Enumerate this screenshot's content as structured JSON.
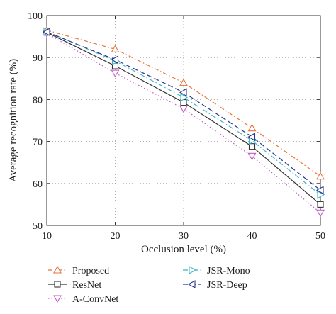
{
  "chart_data": {
    "type": "line",
    "xlabel": "Occlusion level (%)",
    "ylabel": "Average recognition rate (%)",
    "xlim": [
      10,
      50
    ],
    "ylim": [
      50,
      100
    ],
    "xticks": [
      10,
      20,
      30,
      40,
      50
    ],
    "yticks": [
      50,
      60,
      70,
      80,
      90,
      100
    ],
    "grid": true,
    "legend_position": "bottom",
    "x": [
      10,
      20,
      30,
      40,
      50
    ],
    "series": [
      {
        "name": "Proposed",
        "values": [
          96.5,
          92.0,
          84.0,
          73.2,
          61.7
        ],
        "color": "#e8743b",
        "marker": "triangle-up",
        "dash": "6,3,1.5,3"
      },
      {
        "name": "ResNet",
        "values": [
          96.0,
          88.0,
          79.3,
          68.8,
          55.0
        ],
        "color": "#333333",
        "marker": "square",
        "dash": ""
      },
      {
        "name": "A-ConvNet",
        "values": [
          95.8,
          86.3,
          77.8,
          66.5,
          53.0
        ],
        "color": "#c45ac4",
        "marker": "triangle-down",
        "dash": "1.5,3"
      },
      {
        "name": "JSR-Mono",
        "values": [
          96.2,
          89.2,
          80.5,
          70.2,
          57.3
        ],
        "color": "#3fb5c5",
        "marker": "triangle-right",
        "dash": "7,3,1.5,3"
      },
      {
        "name": "JSR-Deep",
        "values": [
          96.1,
          89.5,
          81.7,
          71.1,
          58.4
        ],
        "color": "#2a3590",
        "marker": "triangle-left",
        "dash": "7,4"
      }
    ]
  }
}
